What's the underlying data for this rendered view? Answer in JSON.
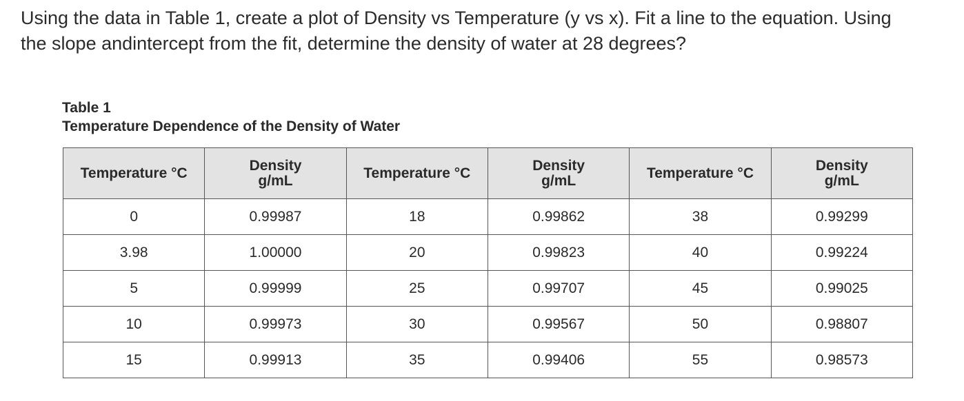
{
  "question": {
    "line1": "Using the data in Table 1, create a plot of Density vs Temperature (y vs x). Fit a line to the equation. Using",
    "line2": "the slope andintercept from the fit, determine the density of water at 28 degrees?"
  },
  "table": {
    "number": "Table 1",
    "title": "Temperature Dependence of the Density of Water",
    "headers": {
      "temperature": "Temperature °C",
      "density_line1": "Density",
      "density_line2": "g/mL"
    },
    "rows": [
      [
        "0",
        "0.99987",
        "18",
        "0.99862",
        "38",
        "0.99299"
      ],
      [
        "3.98",
        "1.00000",
        "20",
        "0.99823",
        "40",
        "0.99224"
      ],
      [
        "5",
        "0.99999",
        "25",
        "0.99707",
        "45",
        "0.99025"
      ],
      [
        "10",
        "0.99973",
        "30",
        "0.99567",
        "50",
        "0.98807"
      ],
      [
        "15",
        "0.99913",
        "35",
        "0.99406",
        "55",
        "0.98573"
      ]
    ]
  }
}
